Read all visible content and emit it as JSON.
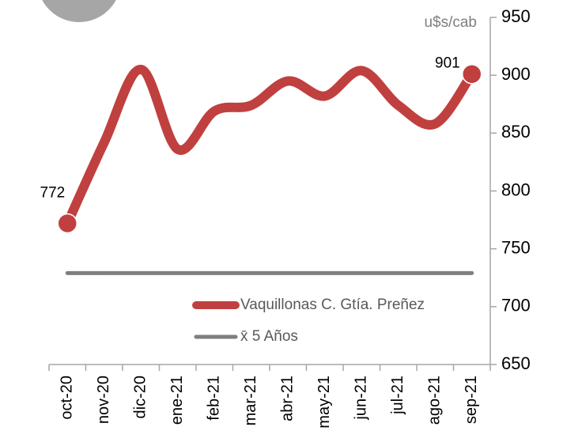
{
  "chart_data": {
    "type": "line",
    "unit_label": "u$s/cab",
    "categories": [
      "oct-20",
      "nov-20",
      "dic-20",
      "ene-21",
      "feb-21",
      "mar-21",
      "abr-21",
      "may-21",
      "jun-21",
      "jul-21",
      "ago-21",
      "sep-21"
    ],
    "series": [
      {
        "name": "Vaquillonas C. Gtía. Preñez",
        "color": "#c0403f",
        "values": [
          772,
          842,
          905,
          836,
          869,
          874,
          895,
          882,
          904,
          874,
          858,
          901
        ]
      },
      {
        "name": "x̄ 5 Años",
        "color": "#7f7f7f",
        "values": [
          729,
          729,
          729,
          729,
          729,
          729,
          729,
          729,
          729,
          729,
          729,
          729
        ]
      }
    ],
    "ylim": [
      650,
      950
    ],
    "yticks": [
      650,
      700,
      750,
      800,
      850,
      900,
      950
    ],
    "y_axis_side": "right"
  }
}
